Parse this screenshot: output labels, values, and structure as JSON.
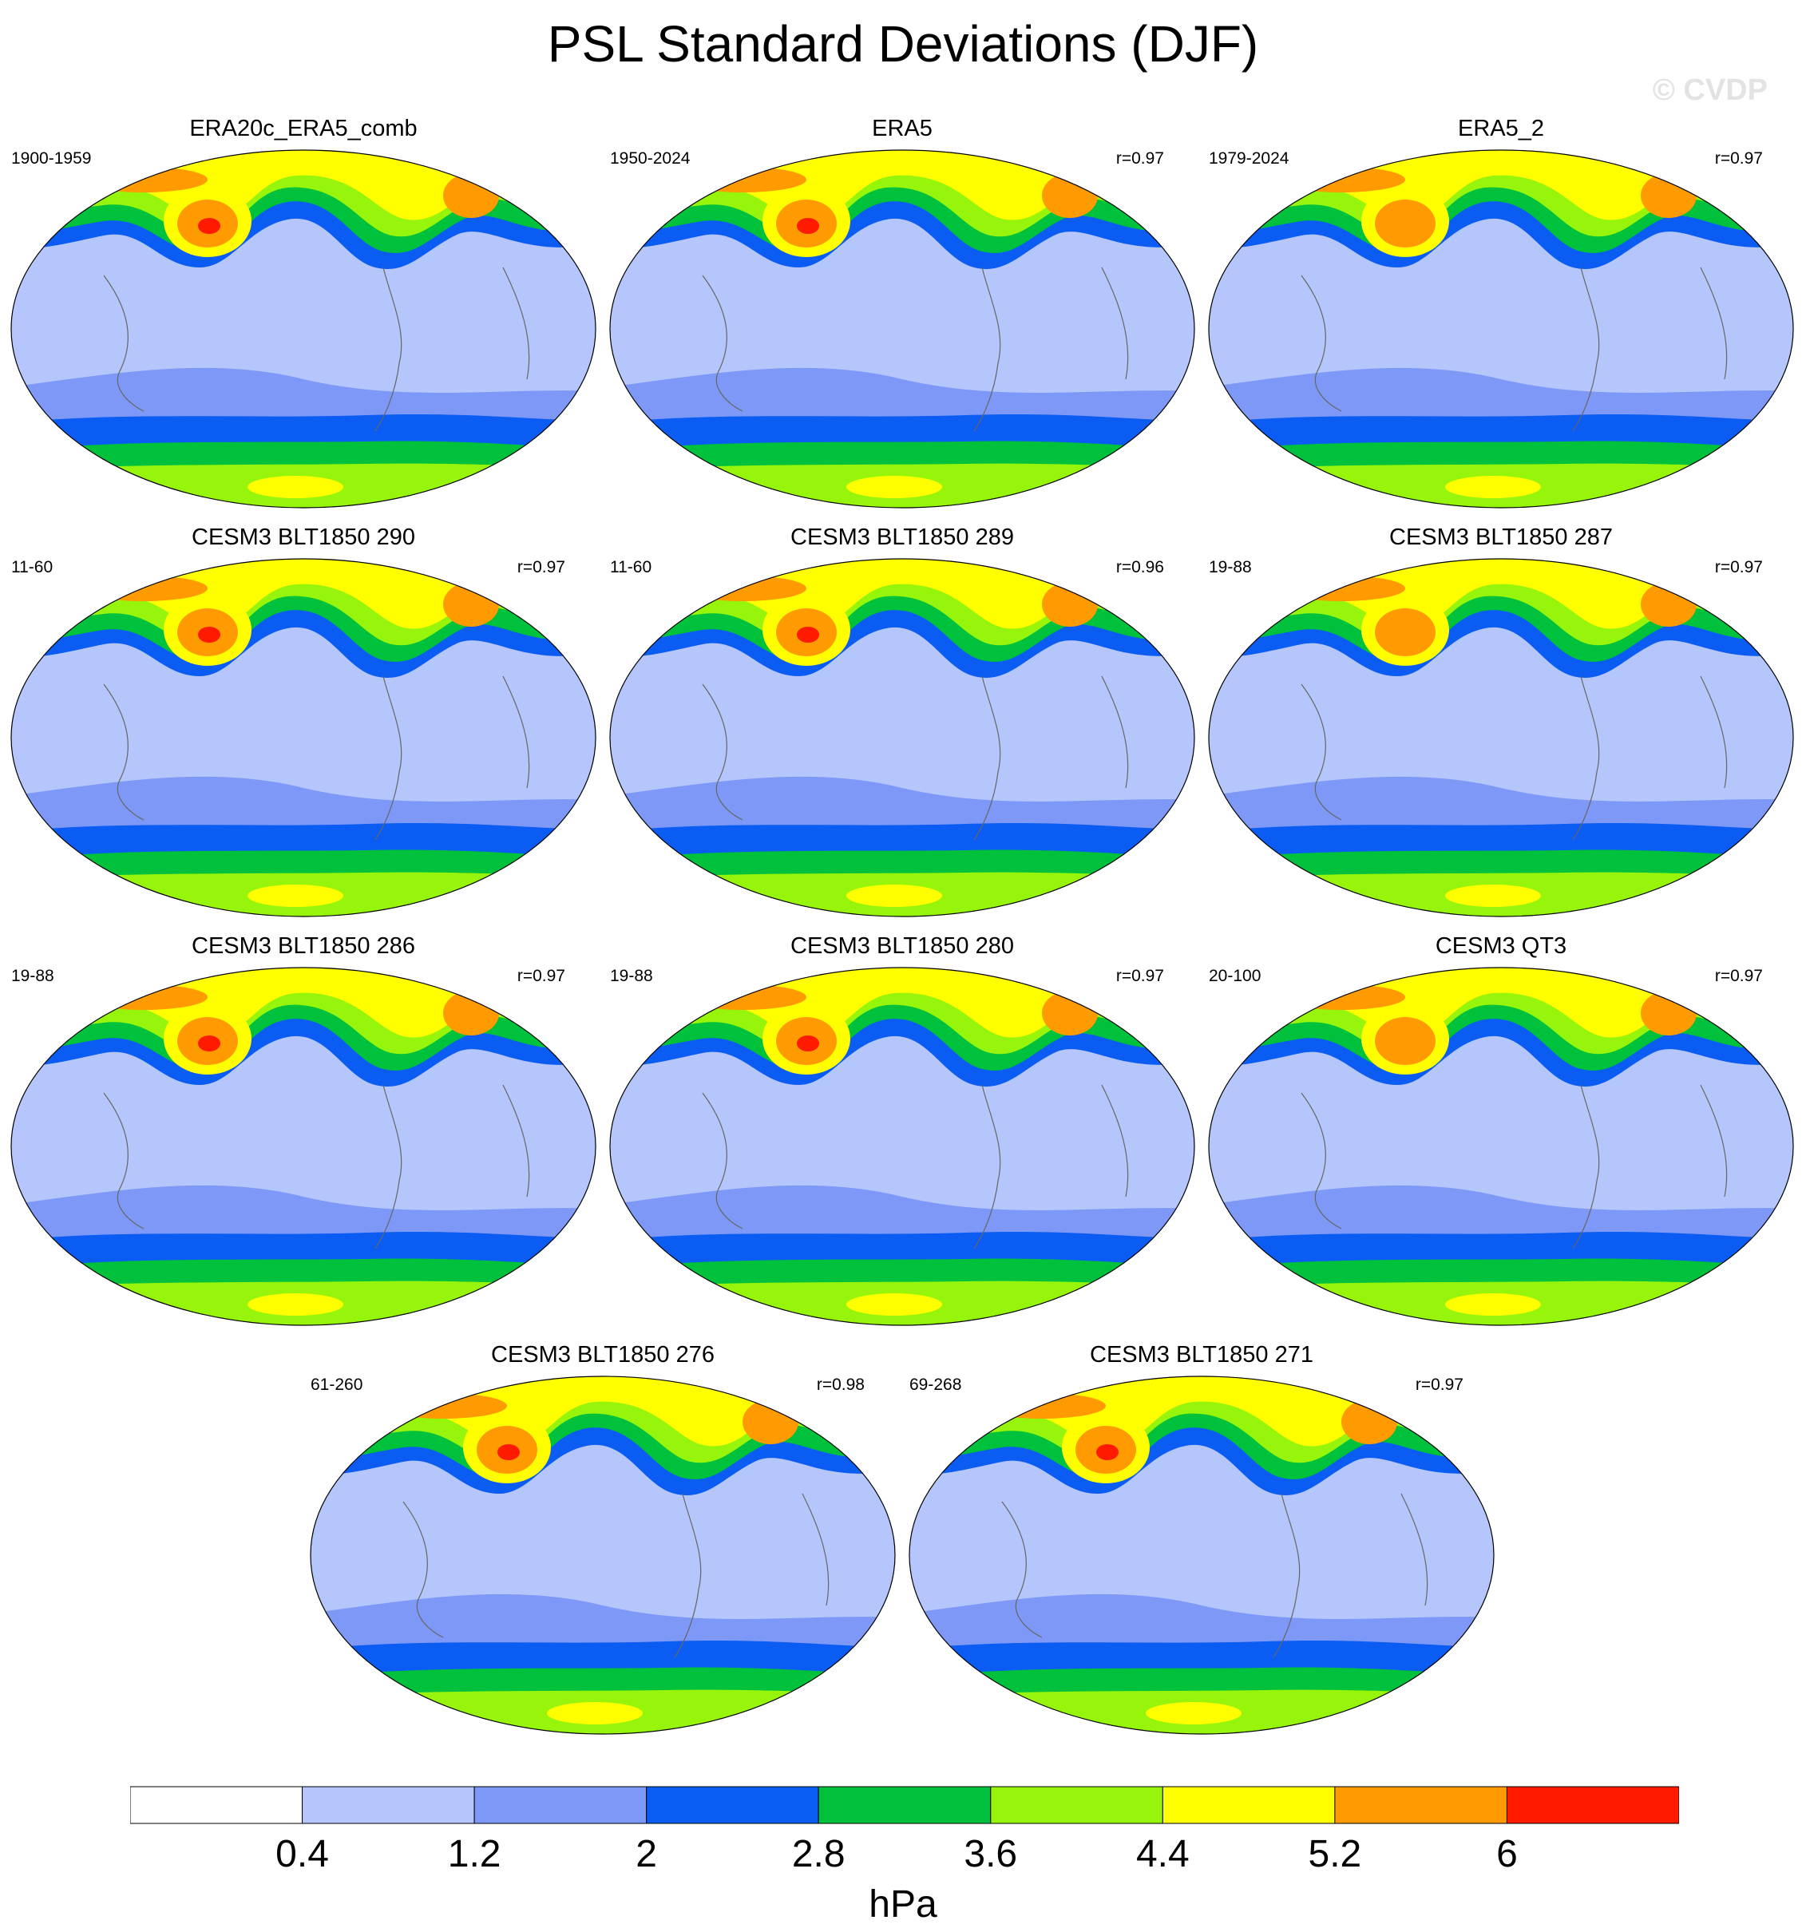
{
  "title": "PSL Standard Deviations (DJF)",
  "watermark": "© CVDP",
  "colors": [
    "#ffffff",
    "#b4c6fb",
    "#7e98f7",
    "#0a5cf2",
    "#00c13c",
    "#96f50a",
    "#ffff00",
    "#ff9a00",
    "#ff1a00"
  ],
  "panels": [
    {
      "title": "ERA20c_ERA5_comb",
      "period": "1900-1959",
      "r": ""
    },
    {
      "title": "ERA5",
      "period": "1950-2024",
      "r": "r=0.97"
    },
    {
      "title": "ERA5_2",
      "period": "1979-2024",
      "r": "r=0.97"
    },
    {
      "title": "CESM3 BLT1850 290",
      "period": "11-60",
      "r": "r=0.97"
    },
    {
      "title": "CESM3 BLT1850 289",
      "period": "11-60",
      "r": "r=0.96"
    },
    {
      "title": "CESM3 BLT1850 287",
      "period": "19-88",
      "r": "r=0.97"
    },
    {
      "title": "CESM3 BLT1850 286",
      "period": "19-88",
      "r": "r=0.97"
    },
    {
      "title": "CESM3 BLT1850 280",
      "period": "19-88",
      "r": "r=0.97"
    },
    {
      "title": "CESM3 QT3",
      "period": "20-100",
      "r": "r=0.97"
    },
    {
      "title": "CESM3 BLT1850 276",
      "period": "61-260",
      "r": "r=0.98"
    },
    {
      "title": "CESM3 BLT1850 271",
      "period": "69-268",
      "r": "r=0.97"
    }
  ],
  "colorbar": {
    "labels": [
      "0.4",
      "1.2",
      "2",
      "2.8",
      "3.6",
      "4.4",
      "5.2",
      "6"
    ],
    "unit": "hPa"
  }
}
